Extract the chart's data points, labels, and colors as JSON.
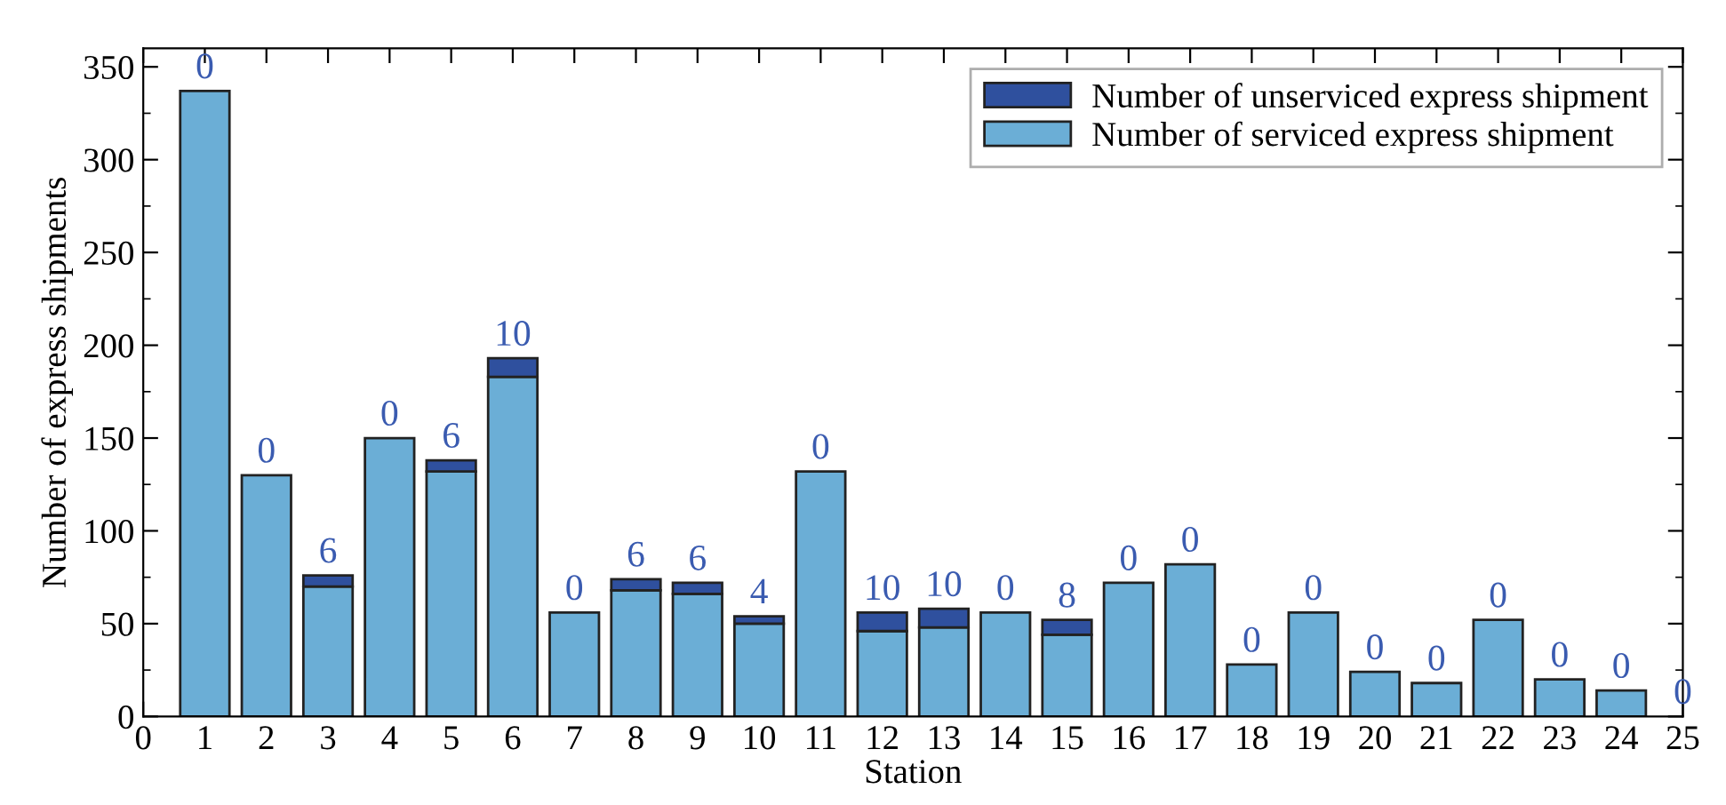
{
  "chart_data": {
    "type": "bar",
    "stacked": true,
    "xlabel": "Station",
    "ylabel": "Number of express shipments",
    "x": [
      1,
      2,
      3,
      4,
      5,
      6,
      7,
      8,
      9,
      10,
      11,
      12,
      13,
      14,
      15,
      16,
      17,
      18,
      19,
      20,
      21,
      22,
      23,
      24,
      25
    ],
    "series": [
      {
        "name": "Number of serviced express shipment",
        "color": "#6baed6",
        "values": [
          337,
          130,
          70,
          150,
          132,
          183,
          56,
          68,
          66,
          50,
          132,
          46,
          48,
          56,
          44,
          72,
          82,
          28,
          56,
          24,
          18,
          52,
          20,
          14,
          0
        ]
      },
      {
        "name": "Number of unserviced express shipment",
        "color": "#2f509e",
        "values": [
          0,
          0,
          6,
          0,
          6,
          10,
          0,
          6,
          6,
          4,
          0,
          10,
          10,
          0,
          8,
          0,
          0,
          0,
          0,
          0,
          0,
          0,
          0,
          0,
          0
        ],
        "value_labels": [
          "0",
          "0",
          "6",
          "0",
          "6",
          "10",
          "0",
          "6",
          "6",
          "4",
          "0",
          "10",
          "10",
          "0",
          "8",
          "0",
          "0",
          "0",
          "0",
          "0",
          "0",
          "0",
          "0",
          "0",
          "0"
        ]
      }
    ],
    "xlim": [
      0,
      25
    ],
    "xticks": [
      0,
      1,
      2,
      3,
      4,
      5,
      6,
      7,
      8,
      9,
      10,
      11,
      12,
      13,
      14,
      15,
      16,
      17,
      18,
      19,
      20,
      21,
      22,
      23,
      24,
      25
    ],
    "ylim": [
      0,
      360
    ],
    "yticks": [
      0,
      50,
      100,
      150,
      200,
      250,
      300,
      350
    ],
    "grid": false,
    "legend": "top right"
  }
}
